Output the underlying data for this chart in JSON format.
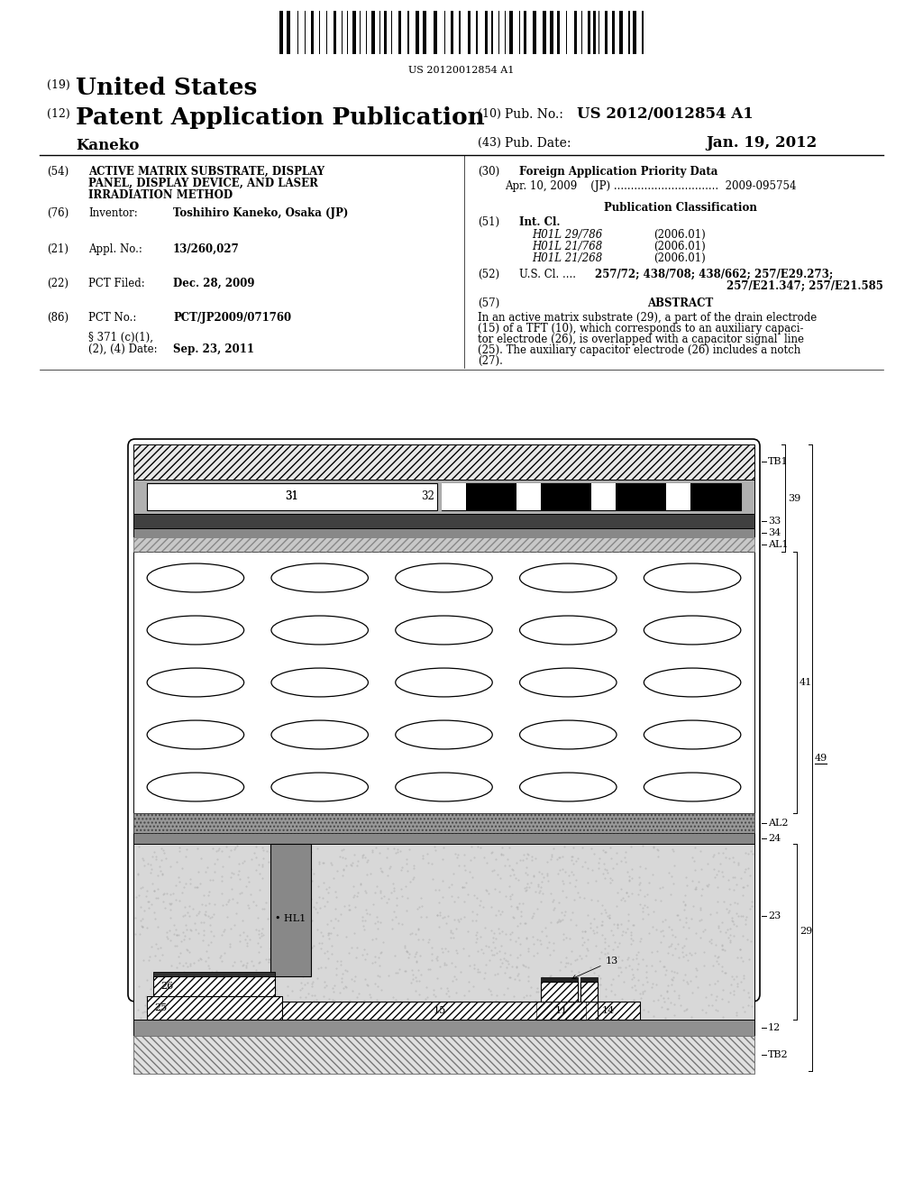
{
  "title": "US 20120012854 A1",
  "patent_number": "US 2012/0012854 A1",
  "pub_date": "Jan. 19, 2012",
  "inventor": "Toshihiro Kaneko, Osaka (JP)",
  "appl_no": "13/260,027",
  "pct_filed": "Dec. 28, 2009",
  "pct_no": "PCT/JP2009/071760",
  "sect371_date": "Sep. 23, 2011",
  "foreign_priority": "Apr. 10, 2009    (JP) ...............................  2009-095754",
  "int_cl": [
    [
      "H01L 29/786",
      "(2006.01)"
    ],
    [
      "H01L 21/768",
      "(2006.01)"
    ],
    [
      "H01L 21/268",
      "(2006.01)"
    ]
  ],
  "us_cl_line1": "257/72; 438/708; 438/662; 257/E29.273;",
  "us_cl_line2": "257/E21.347; 257/E21.585",
  "abstract_lines": [
    "In an active matrix substrate (29), a part of the drain electrode",
    "(15) of a TFT (10), which corresponds to an auxiliary capaci-",
    "tor electrode (26), is overlapped with a capacitor signal  line",
    "(25). The auxiliary capacitor electrode (26) includes a notch",
    "(27)."
  ],
  "lines54": [
    "ACTIVE MATRIX SUBSTRATE, DISPLAY",
    "PANEL, DISPLAY DEVICE, AND LASER",
    "IRRADIATION METHOD"
  ],
  "bg_color": "#ffffff"
}
